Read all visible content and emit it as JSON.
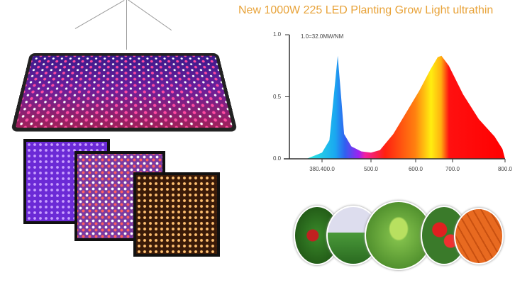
{
  "title": "New 1000W 225 LED Planting Grow Light  ultrathin",
  "chart_data": {
    "type": "area",
    "annotation": "1.0=32.0MW/NM",
    "y_ticks": [
      "0.0",
      "0.5",
      "1.0"
    ],
    "x_ticks": [
      "380.400.0",
      "500.0",
      "600.0",
      "700.0",
      "800.0"
    ],
    "ylim": [
      0,
      1
    ],
    "x": [
      375,
      400,
      415,
      425,
      432,
      438,
      445,
      460,
      480,
      500,
      520,
      550,
      580,
      610,
      640,
      660,
      670,
      690,
      720,
      750,
      780,
      795,
      800
    ],
    "y": [
      0,
      0.05,
      0.15,
      0.55,
      0.83,
      0.55,
      0.2,
      0.1,
      0.06,
      0.05,
      0.07,
      0.2,
      0.38,
      0.55,
      0.72,
      0.82,
      0.83,
      0.75,
      0.52,
      0.32,
      0.18,
      0.08,
      0
    ],
    "fill": "spectral-gradient"
  },
  "colors": {
    "title": "#e8a33a"
  },
  "plant_photos": [
    "strawberry",
    "greenhouse",
    "seedling",
    "tulips",
    "carrots"
  ]
}
